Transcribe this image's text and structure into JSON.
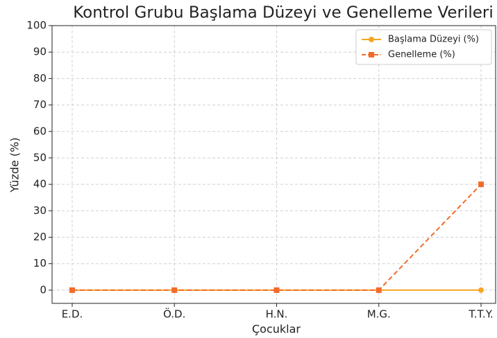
{
  "chart_data": {
    "type": "line",
    "title": "Kontrol Grubu Başlama Düzeyi ve Genelleme Verileri",
    "x_label": "Çocuklar",
    "y_label": "Yüzde (%)",
    "categories": [
      "E.D.",
      "Ö.D.",
      "H.N.",
      "M.G.",
      "T.T.Y."
    ],
    "series": [
      {
        "name": "Başlama Düzeyi (%)",
        "color": "#f5a623",
        "values": [
          0,
          0,
          0,
          0,
          0
        ],
        "linestyle": "solid",
        "marker": "circle"
      },
      {
        "name": "Genelleme (%)",
        "color": "#f26b2a",
        "values": [
          0,
          0,
          0,
          0,
          40
        ],
        "linestyle": "dashed",
        "marker": "square"
      }
    ],
    "ylim": [
      -5,
      100
    ],
    "yticks": [
      0,
      10,
      20,
      30,
      40,
      50,
      60,
      70,
      80,
      90,
      100
    ],
    "grid": true,
    "legend": "upper right"
  }
}
